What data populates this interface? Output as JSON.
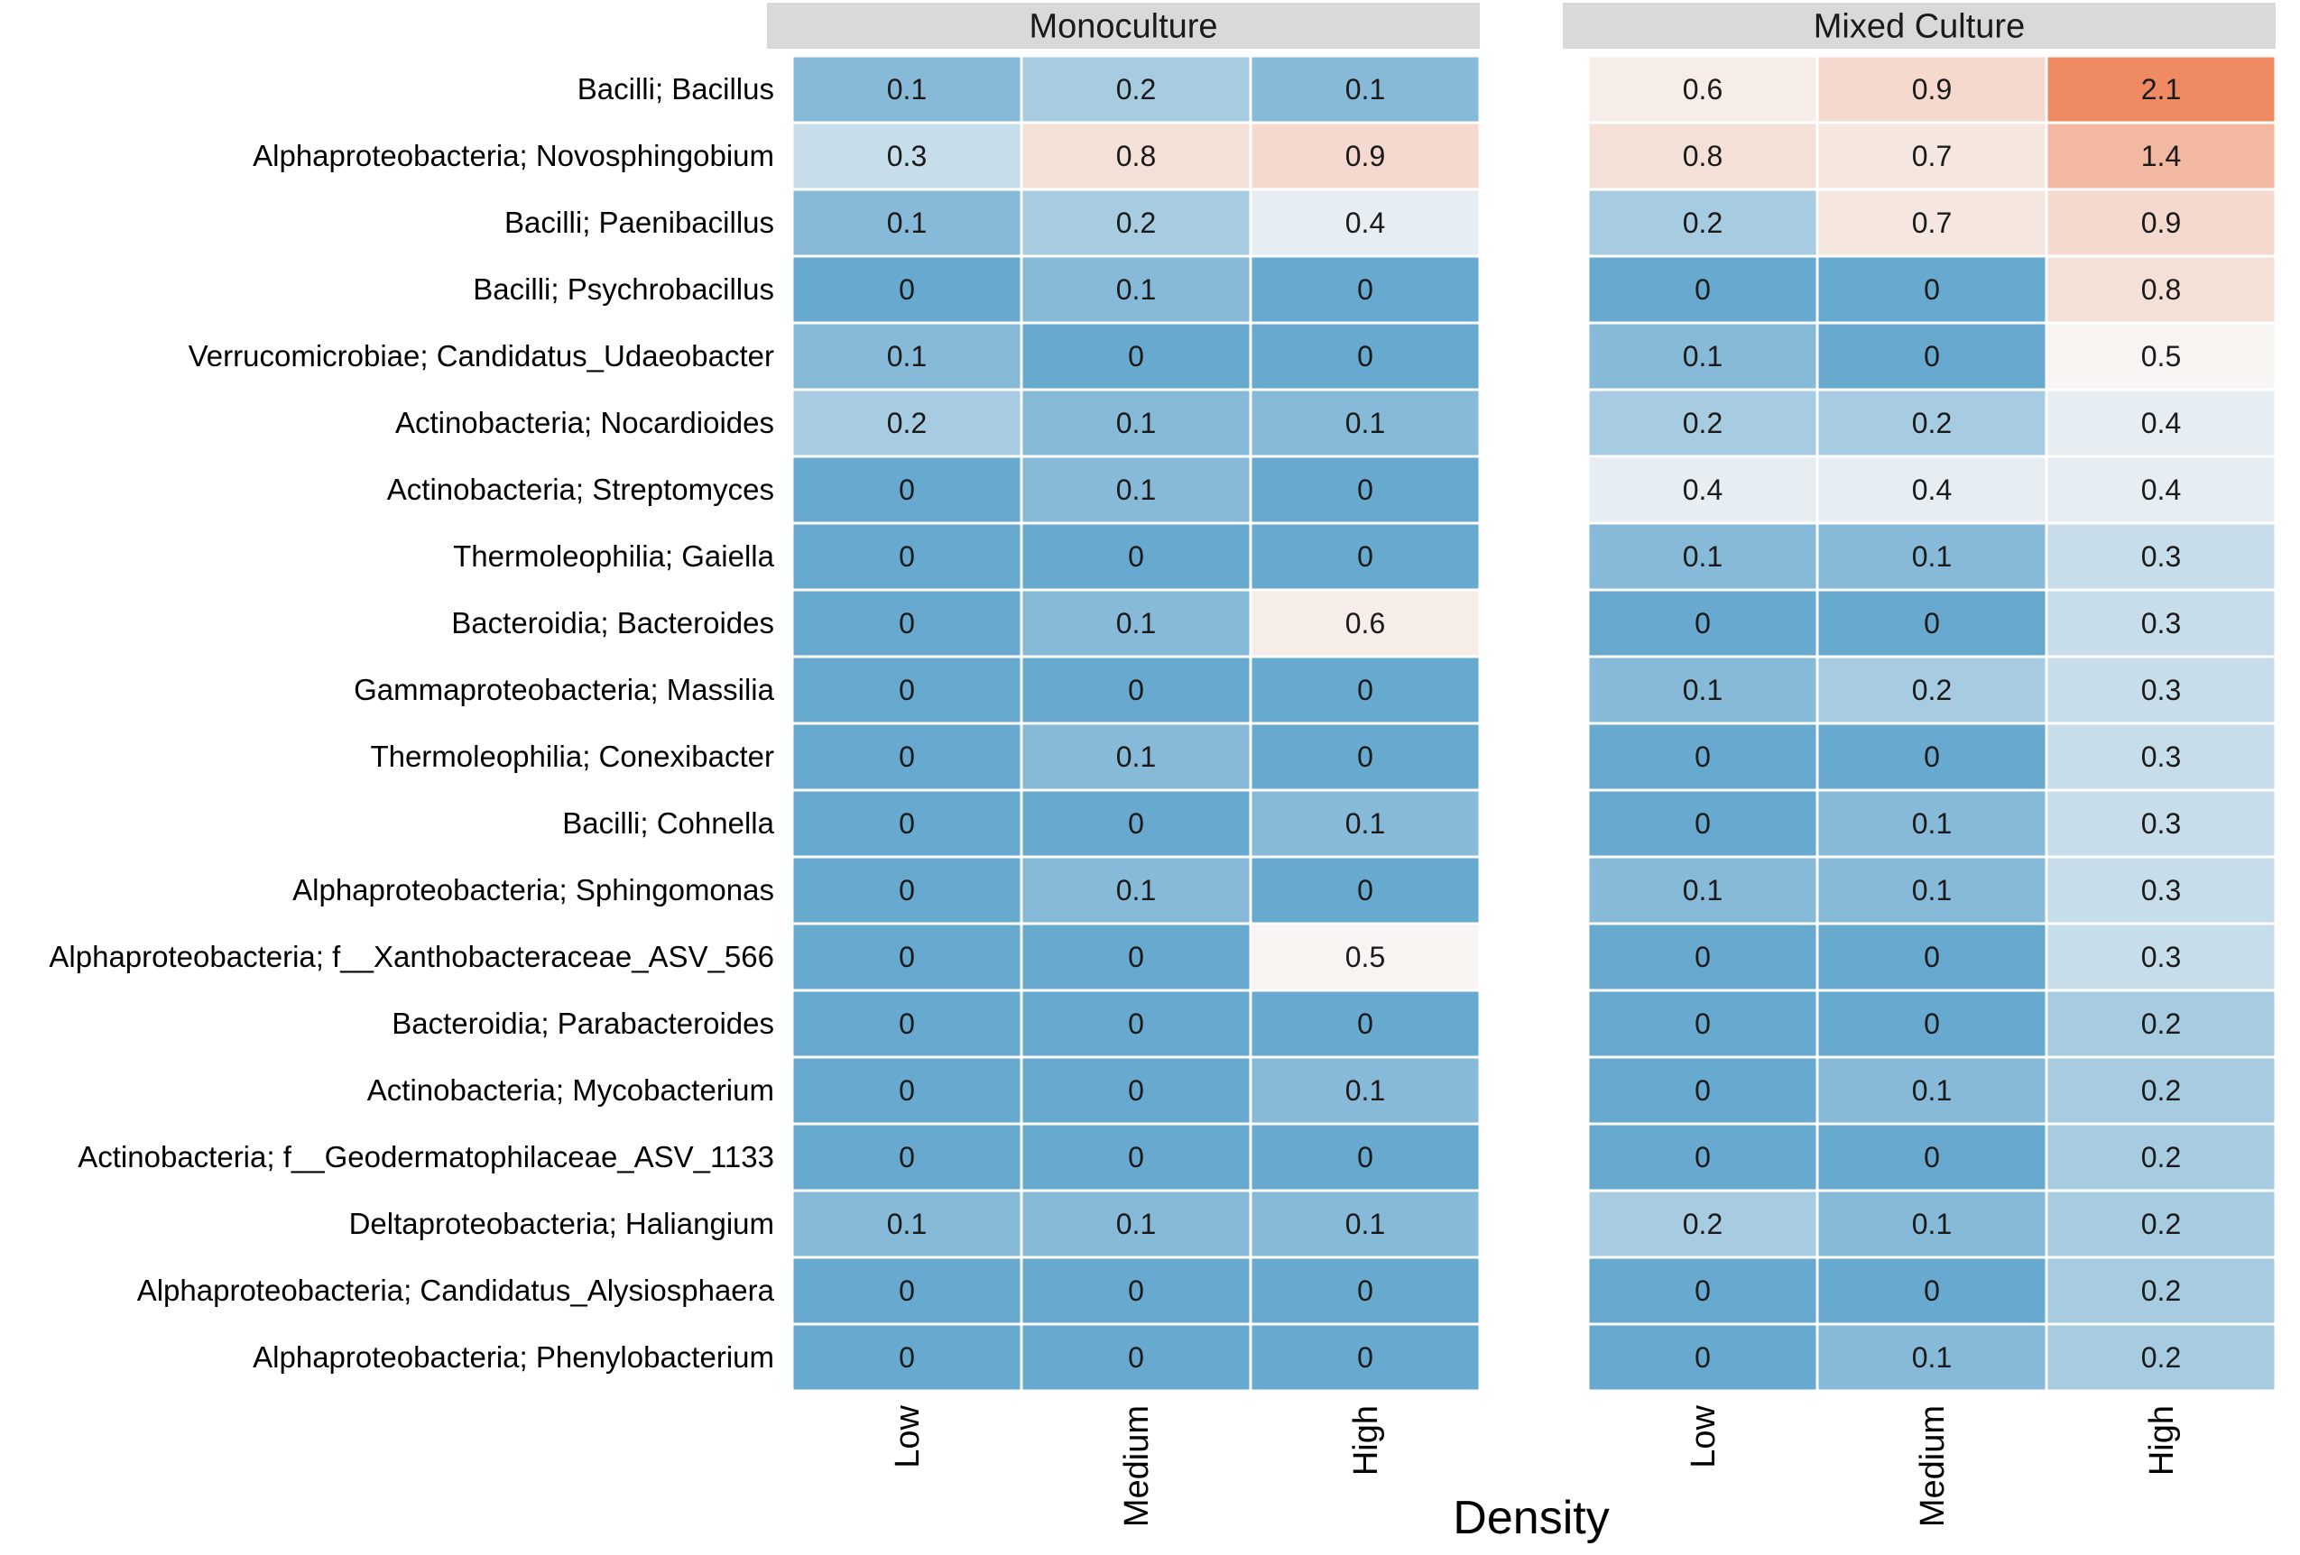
{
  "chart_data": {
    "type": "heatmap",
    "xlabel": "Density",
    "ylabel": "",
    "categories": [
      "Low",
      "Medium",
      "High"
    ],
    "rows": [
      "Bacilli; Bacillus",
      "Alphaproteobacteria; Novosphingobium",
      "Bacilli; Paenibacillus",
      "Bacilli; Psychrobacillus",
      "Verrucomicrobiae; Candidatus_Udaeobacter",
      "Actinobacteria; Nocardioides",
      "Actinobacteria; Streptomyces",
      "Thermoleophilia; Gaiella",
      "Bacteroidia; Bacteroides",
      "Gammaproteobacteria; Massilia",
      "Thermoleophilia; Conexibacter",
      "Bacilli; Cohnella",
      "Alphaproteobacteria; Sphingomonas",
      "Alphaproteobacteria; f__Xanthobacteraceae_ASV_566",
      "Bacteroidia; Parabacteroides",
      "Actinobacteria; Mycobacterium",
      "Actinobacteria; f__Geodermatophilaceae_ASV_1133",
      "Deltaproteobacteria; Haliangium",
      "Alphaproteobacteria; Candidatus_Alysiosphaera",
      "Alphaproteobacteria; Phenylobacterium"
    ],
    "panels": [
      {
        "name": "Monoculture",
        "values": [
          [
            0.1,
            0.2,
            0.1
          ],
          [
            0.3,
            0.8,
            0.9
          ],
          [
            0.1,
            0.2,
            0.4
          ],
          [
            0,
            0.1,
            0
          ],
          [
            0.1,
            0,
            0
          ],
          [
            0.2,
            0.1,
            0.1
          ],
          [
            0,
            0.1,
            0
          ],
          [
            0,
            0,
            0
          ],
          [
            0,
            0.1,
            0.6
          ],
          [
            0,
            0,
            0
          ],
          [
            0,
            0.1,
            0
          ],
          [
            0,
            0,
            0.1
          ],
          [
            0,
            0.1,
            0
          ],
          [
            0,
            0,
            0.5
          ],
          [
            0,
            0,
            0
          ],
          [
            0,
            0,
            0.1
          ],
          [
            0,
            0,
            0
          ],
          [
            0.1,
            0.1,
            0.1
          ],
          [
            0,
            0,
            0
          ],
          [
            0,
            0,
            0
          ]
        ]
      },
      {
        "name": "Mixed Culture",
        "values": [
          [
            0.6,
            0.9,
            2.1
          ],
          [
            0.8,
            0.7,
            1.4
          ],
          [
            0.2,
            0.7,
            0.9
          ],
          [
            0,
            0,
            0.8
          ],
          [
            0.1,
            0,
            0.5
          ],
          [
            0.2,
            0.2,
            0.4
          ],
          [
            0.4,
            0.4,
            0.4
          ],
          [
            0.1,
            0.1,
            0.3
          ],
          [
            0,
            0,
            0.3
          ],
          [
            0.1,
            0.2,
            0.3
          ],
          [
            0,
            0,
            0.3
          ],
          [
            0,
            0.1,
            0.3
          ],
          [
            0.1,
            0.1,
            0.3
          ],
          [
            0,
            0,
            0.3
          ],
          [
            0,
            0,
            0.2
          ],
          [
            0,
            0.1,
            0.2
          ],
          [
            0,
            0,
            0.2
          ],
          [
            0.2,
            0.1,
            0.2
          ],
          [
            0,
            0,
            0.2
          ],
          [
            0,
            0.1,
            0.2
          ]
        ]
      }
    ],
    "color_scale": {
      "low": "#67a9cf",
      "mid": "#f7f7f7",
      "high": "#ef8a62",
      "range": [
        0,
        2.1
      ]
    },
    "strip_color": "#d9d9d9",
    "grid_color": "#ffffff"
  }
}
